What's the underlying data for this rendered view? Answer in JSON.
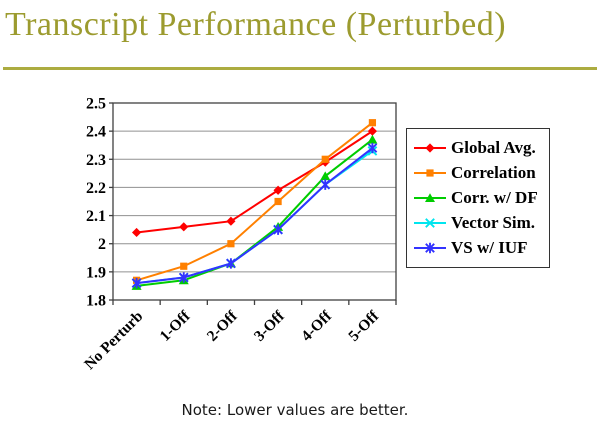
{
  "slide": {
    "title": "Transcript Performance (Perturbed)",
    "note": "Note: Lower values are better."
  },
  "colors": {
    "title": "#9C9B2F",
    "rule": "#ACAC40",
    "gridline": "#909090",
    "axis": "#404040",
    "label_text": "#000000"
  },
  "chart_data": {
    "type": "line",
    "title": "",
    "xlabel": "",
    "ylabel": "",
    "categories": [
      "No Perturb",
      "1-Off",
      "2-Off",
      "3-Off",
      "4-Off",
      "5-Off"
    ],
    "series": [
      {
        "name": "Global Avg.",
        "color": "#FF0000",
        "marker": "diamond",
        "values": [
          2.04,
          2.06,
          2.08,
          2.19,
          2.29,
          2.4
        ]
      },
      {
        "name": "Correlation",
        "color": "#FF8000",
        "marker": "square",
        "values": [
          1.87,
          1.92,
          2.0,
          2.15,
          2.3,
          2.43
        ]
      },
      {
        "name": "Corr. w/ DF",
        "color": "#00CC00",
        "marker": "triangle",
        "values": [
          1.85,
          1.87,
          1.93,
          2.06,
          2.24,
          2.37
        ]
      },
      {
        "name": "Vector Sim.",
        "color": "#00E5EE",
        "marker": "x",
        "values": [
          1.86,
          1.88,
          1.93,
          2.05,
          2.21,
          2.33
        ]
      },
      {
        "name": "VS w/ IUF",
        "color": "#3333FF",
        "marker": "asterisk",
        "values": [
          1.86,
          1.88,
          1.93,
          2.05,
          2.21,
          2.34
        ]
      }
    ],
    "ylim": [
      1.8,
      2.5
    ],
    "ytick_labels": [
      "1.8",
      "1.9",
      "2",
      "2.1",
      "2.2",
      "2.3",
      "2.4",
      "2.5"
    ],
    "grid": true,
    "legend_position": "right"
  }
}
